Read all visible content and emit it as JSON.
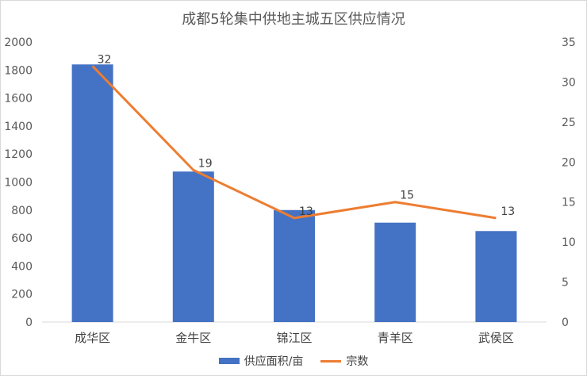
{
  "chart_data": {
    "type": "bar",
    "title": "成都5轮集中供地主城五区供应情况",
    "categories": [
      "成华区",
      "金牛区",
      "锦江区",
      "青羊区",
      "武侯区"
    ],
    "series": [
      {
        "name": "供应面积/亩",
        "type": "bar",
        "axis": "left",
        "values": [
          1840,
          1075,
          800,
          710,
          650
        ]
      },
      {
        "name": "宗数",
        "type": "line",
        "axis": "right",
        "values": [
          32,
          19,
          13,
          15,
          13
        ]
      }
    ],
    "ylim_left": [
      0,
      2000
    ],
    "yticks_left": [
      0,
      200,
      400,
      600,
      800,
      1000,
      1200,
      1400,
      1600,
      1800,
      2000
    ],
    "ylim_right": [
      0,
      35
    ],
    "yticks_right": [
      0,
      5,
      10,
      15,
      20,
      25,
      30,
      35
    ],
    "grid": false,
    "legend_position": "bottom",
    "colors": {
      "bar": "#4472c4",
      "line": "#ed7d31"
    }
  }
}
